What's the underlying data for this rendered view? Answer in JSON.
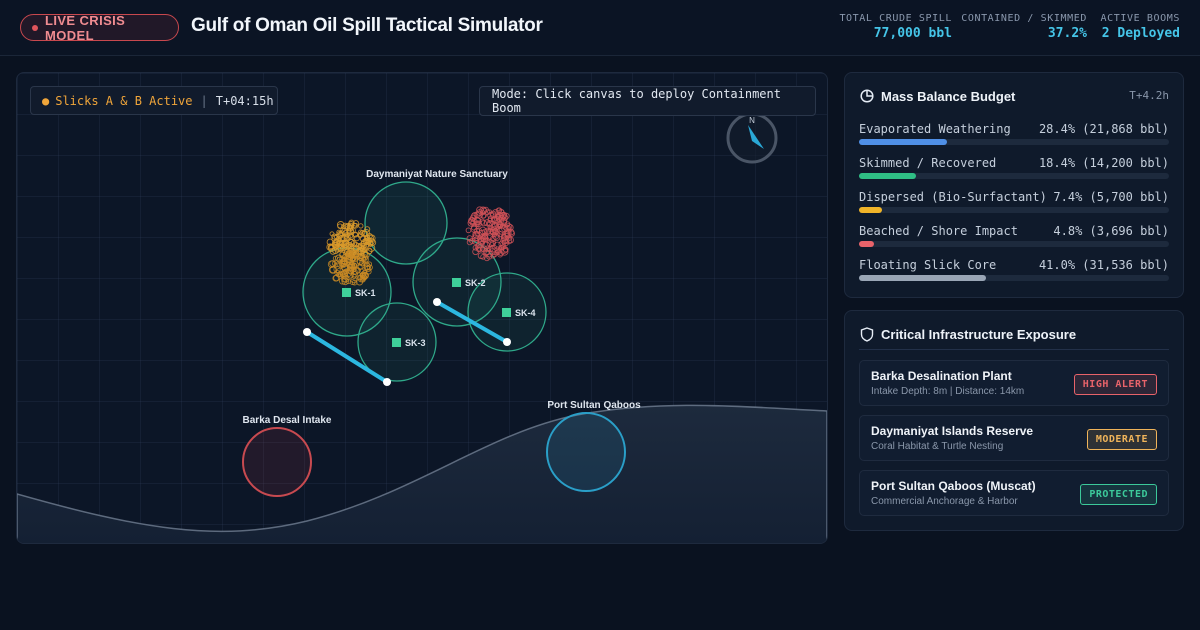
{
  "header": {
    "live_label": "LIVE CRISIS MODEL",
    "title": "Gulf of Oman Oil Spill Tactical Simulator",
    "stats": [
      {
        "label": "TOTAL CRUDE SPILL",
        "value": "77,000 bbl"
      },
      {
        "label": "CONTAINED / SKIMMED",
        "value": "37.2%"
      },
      {
        "label": "ACTIVE BOOMS",
        "value": "2 Deployed"
      }
    ]
  },
  "map": {
    "status_slicks": "Slicks A & B Active",
    "status_time": "T+04:15h",
    "mode_text": "Mode: Click canvas to deploy Containment Boom",
    "compass_label": "N",
    "labels": {
      "sanctuary": "Daymaniyat Nature Sanctuary",
      "desal": "Barka Desal Intake",
      "port": "Port Sultan Qaboos"
    },
    "skimmers": [
      {
        "id": "SK-1"
      },
      {
        "id": "SK-2"
      },
      {
        "id": "SK-3"
      },
      {
        "id": "SK-4"
      }
    ]
  },
  "budget": {
    "title": "Mass Balance Budget",
    "time": "T+4.2h",
    "rows": [
      {
        "label": "Evaporated Weathering",
        "value": "28.4% (21,868 bbl)",
        "fraction": 0.284,
        "color": "#4f8fe6"
      },
      {
        "label": "Skimmed / Recovered",
        "value": "18.4% (14,200 bbl)",
        "fraction": 0.184,
        "color": "#2fbf85"
      },
      {
        "label": "Dispersed (Bio-Surfactant)",
        "value": "7.4% (5,700 bbl)",
        "fraction": 0.074,
        "color": "#f0b429"
      },
      {
        "label": "Beached / Shore Impact",
        "value": "4.8% (3,696 bbl)",
        "fraction": 0.048,
        "color": "#e8636a"
      },
      {
        "label": "Floating Slick Core",
        "value": "41.0% (31,536 bbl)",
        "fraction": 0.41,
        "color": "#9aa6b6"
      }
    ]
  },
  "infrastructure": {
    "title": "Critical Infrastructure Exposure",
    "items": [
      {
        "name": "Barka Desalination Plant",
        "detail": "Intake Depth: 8m | Distance: 14km",
        "status": "HIGH ALERT",
        "color": "#e8636a"
      },
      {
        "name": "Daymaniyat Islands Reserve",
        "detail": "Coral Habitat & Turtle Nesting",
        "status": "MODERATE",
        "color": "#f0b45a"
      },
      {
        "name": "Port Sultan Qaboos (Muscat)",
        "detail": "Commercial Anchorage & Harbor",
        "status": "PROTECTED",
        "color": "#3cc99a"
      }
    ]
  }
}
